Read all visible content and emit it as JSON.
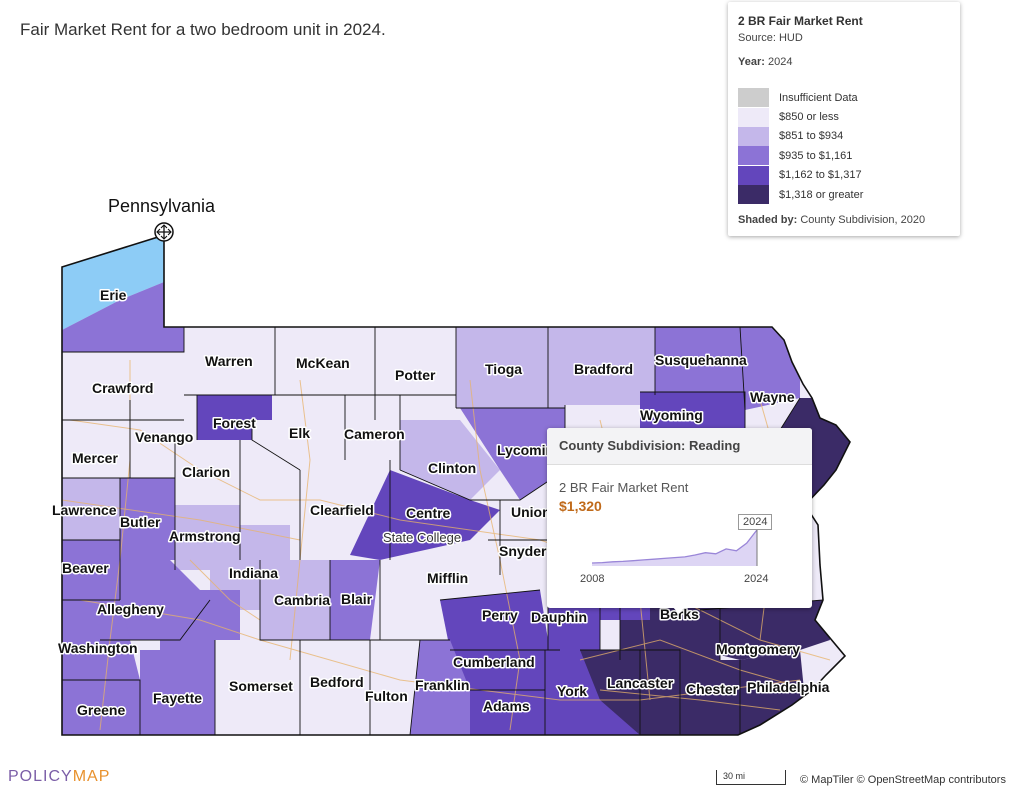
{
  "title": "Fair Market Rent for a two bedroom unit in 2024.",
  "state_label": "Pennsylvania",
  "colors": {
    "insufficient": "#cdcdcd",
    "c1": "#eeeaf8",
    "c2": "#c4b7ea",
    "c3": "#8c73d6",
    "c4": "#6346bc",
    "c5": "#3b2b67",
    "erie_water": "#8dccf6"
  },
  "legend": {
    "title": "2 BR Fair Market Rent",
    "source": "Source: HUD",
    "year_label": "Year:",
    "year_value": "2024",
    "items": [
      {
        "label": "Insufficient Data",
        "color": "#cdcdcd"
      },
      {
        "label": "$850 or less",
        "color": "#eeeaf8"
      },
      {
        "label": "$851 to $934",
        "color": "#c4b7ea"
      },
      {
        "label": "$935 to $1,161",
        "color": "#8c73d6"
      },
      {
        "label": "$1,162 to $1,317",
        "color": "#6346bc"
      },
      {
        "label": "$1,318 or greater",
        "color": "#3b2b67"
      }
    ],
    "shaded_label": "Shaded by:",
    "shaded_value": "County Subdivision, 2020"
  },
  "counties": [
    "Erie",
    "Crawford",
    "Warren",
    "McKean",
    "Potter",
    "Tioga",
    "Bradford",
    "Susquehanna",
    "Wayne",
    "Wyoming",
    "Forest",
    "Venango",
    "Elk",
    "Cameron",
    "Mercer",
    "Clarion",
    "Clinton",
    "Lycoming",
    "Lawrence",
    "Butler",
    "Clearfield",
    "Centre",
    "Union",
    "Armstrong",
    "Snyder",
    "Beaver",
    "Indiana",
    "Mifflin",
    "Allegheny",
    "Cambria",
    "Blair",
    "Perry",
    "Dauphin",
    "Berks",
    "Washington",
    "Cumberland",
    "Montgomery",
    "Somerset",
    "Bedford",
    "Fulton",
    "Franklin",
    "Lancaster",
    "Chester",
    "Philadelphia",
    "Fayette",
    "York",
    "Adams",
    "Greene"
  ],
  "city_labels": [
    "State College"
  ],
  "popup": {
    "header": "County Subdivision: Reading",
    "metric": "2 BR Fair Market Rent",
    "value": "$1,320",
    "start_year": "2008",
    "end_year": "2024",
    "badge": "2024",
    "trend": [
      0.08,
      0.09,
      0.11,
      0.12,
      0.14,
      0.16,
      0.18,
      0.2,
      0.22,
      0.24,
      0.29,
      0.35,
      0.32,
      0.45,
      0.4,
      0.6,
      0.95
    ]
  },
  "logo": {
    "part1": "POLICY",
    "part2": "MAP"
  },
  "scale_label": "30 mi",
  "attribution": "© MapTiler © OpenStreetMap contributors"
}
